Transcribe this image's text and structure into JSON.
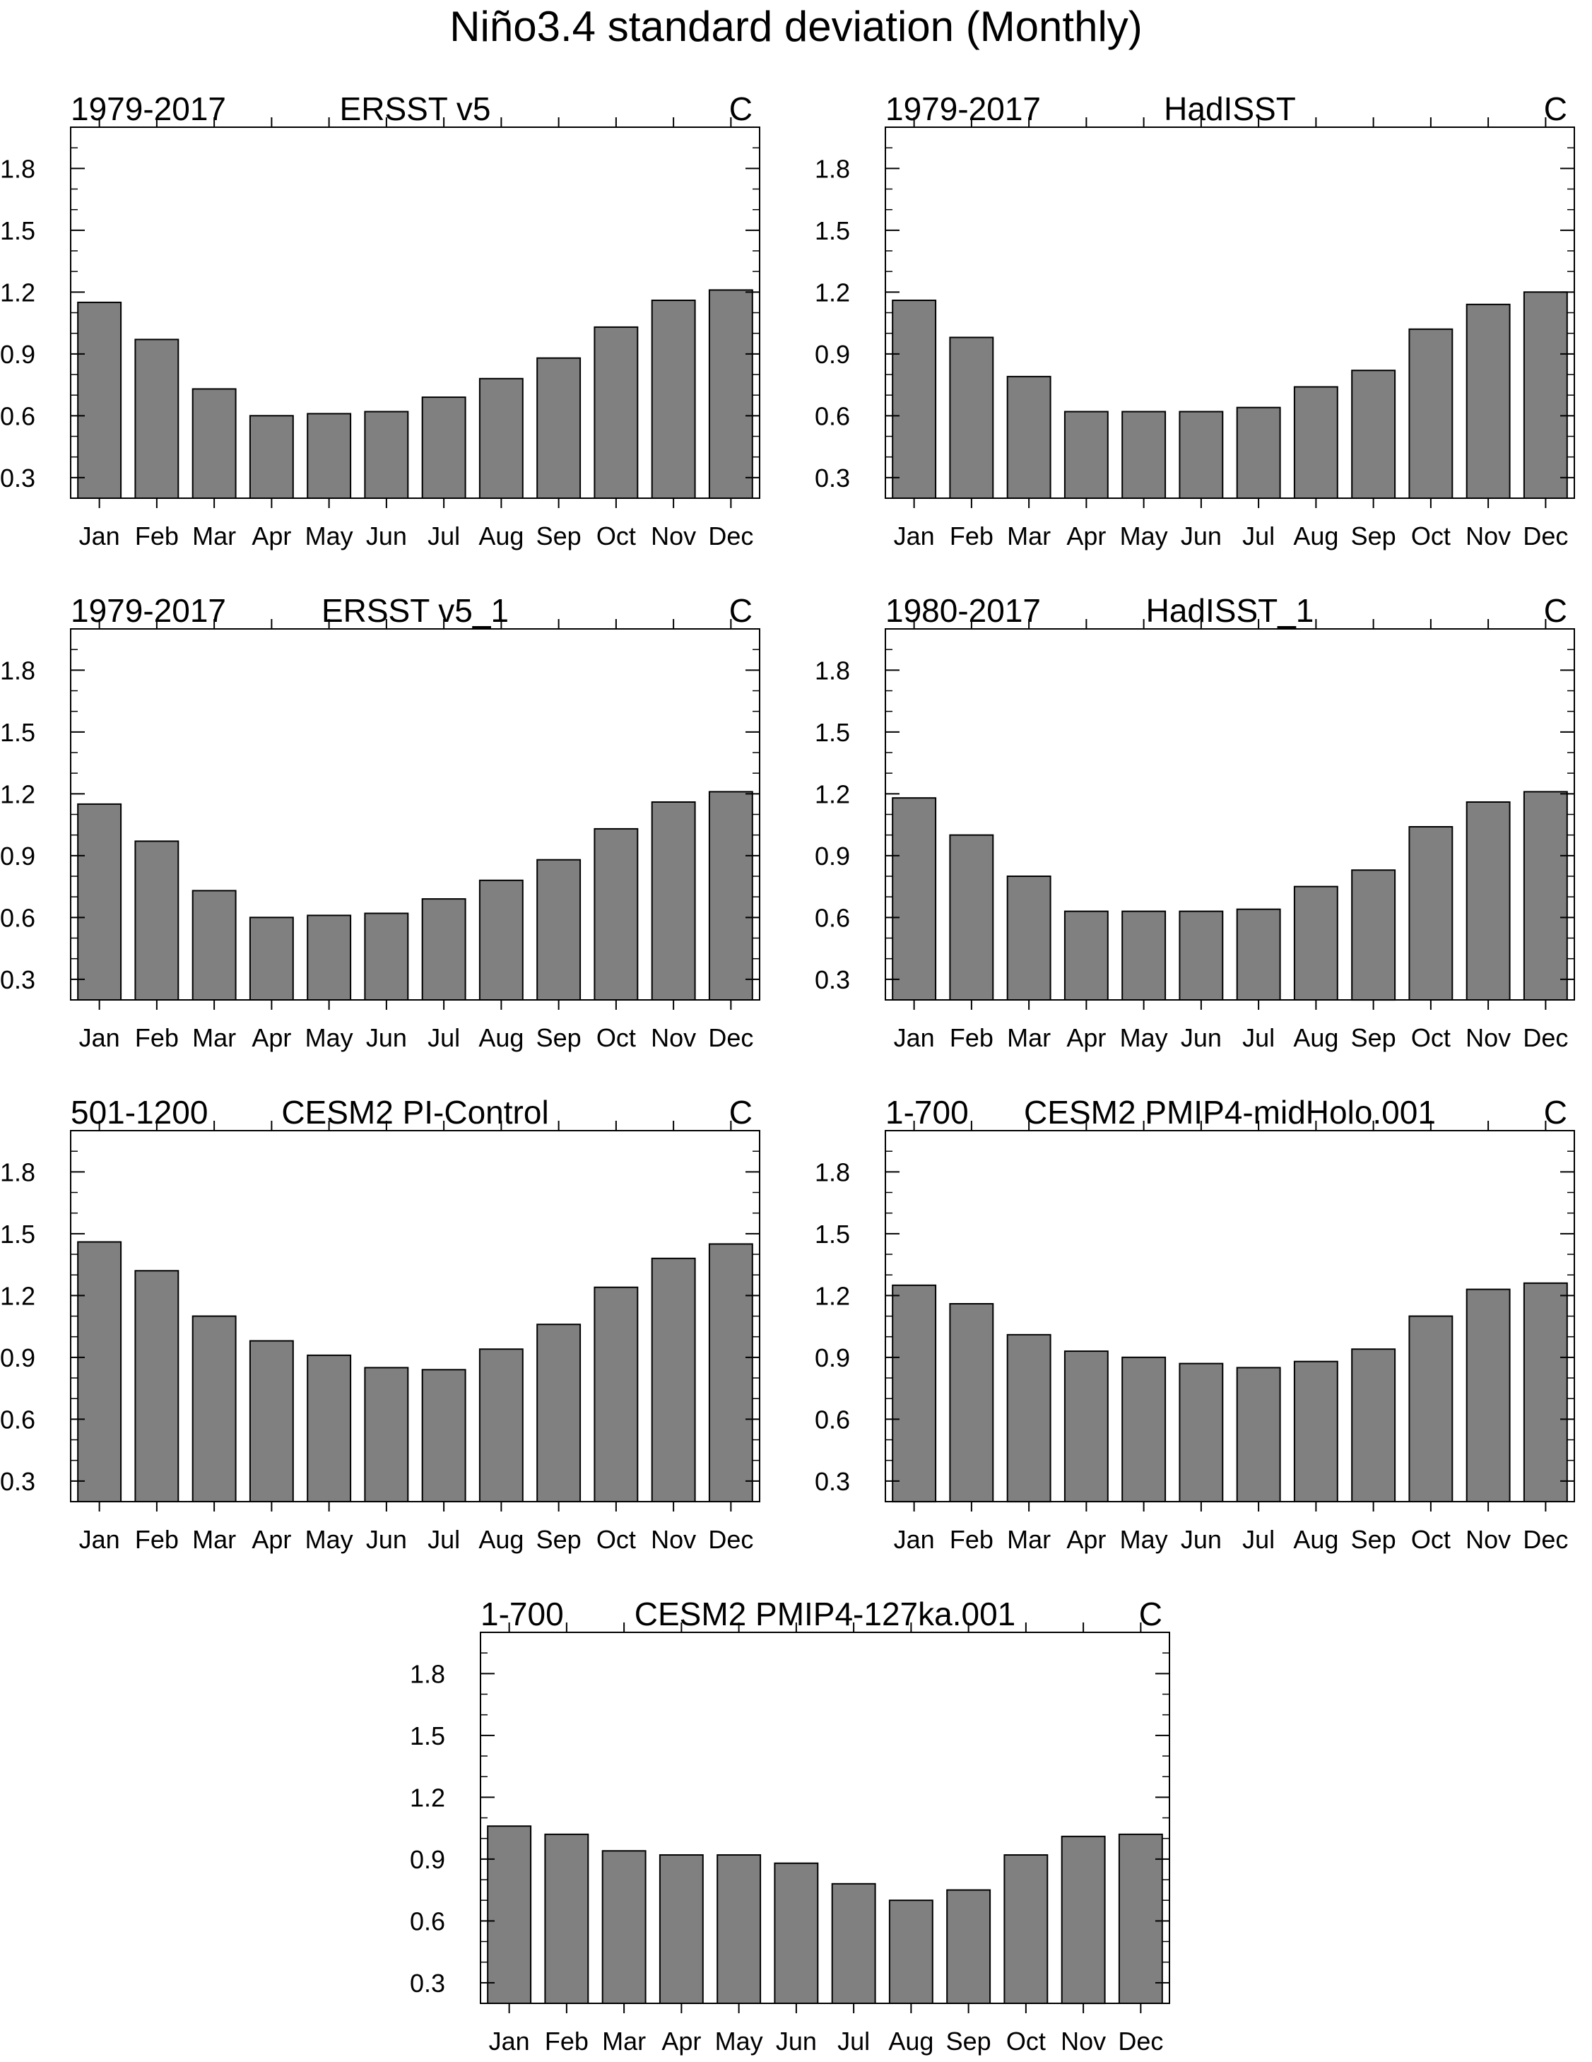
{
  "figure": {
    "title": "Niño3.4 standard deviation (Monthly)"
  },
  "chart_data": [
    {
      "type": "bar",
      "id": "ersst-v5",
      "title": "ERSST v5",
      "period": "1979-2017",
      "units": "C",
      "categories": [
        "Jan",
        "Feb",
        "Mar",
        "Apr",
        "May",
        "Jun",
        "Jul",
        "Aug",
        "Sep",
        "Oct",
        "Nov",
        "Dec"
      ],
      "values": [
        1.15,
        0.97,
        0.73,
        0.6,
        0.61,
        0.62,
        0.69,
        0.78,
        0.88,
        1.03,
        1.16,
        1.21
      ],
      "yticks": [
        "0.3",
        "0.6",
        "0.9",
        "1.2",
        "1.5",
        "1.8"
      ],
      "ylim": [
        0.2,
        2.0
      ],
      "xlabel": "",
      "ylabel": ""
    },
    {
      "type": "bar",
      "id": "hadisst",
      "title": "HadISST",
      "period": "1979-2017",
      "units": "C",
      "categories": [
        "Jan",
        "Feb",
        "Mar",
        "Apr",
        "May",
        "Jun",
        "Jul",
        "Aug",
        "Sep",
        "Oct",
        "Nov",
        "Dec"
      ],
      "values": [
        1.16,
        0.98,
        0.79,
        0.62,
        0.62,
        0.62,
        0.64,
        0.74,
        0.82,
        1.02,
        1.14,
        1.2
      ],
      "yticks": [
        "0.3",
        "0.6",
        "0.9",
        "1.2",
        "1.5",
        "1.8"
      ],
      "ylim": [
        0.2,
        2.0
      ],
      "xlabel": "",
      "ylabel": ""
    },
    {
      "type": "bar",
      "id": "ersst-v5-1",
      "title": "ERSST v5_1",
      "period": "1979-2017",
      "units": "C",
      "categories": [
        "Jan",
        "Feb",
        "Mar",
        "Apr",
        "May",
        "Jun",
        "Jul",
        "Aug",
        "Sep",
        "Oct",
        "Nov",
        "Dec"
      ],
      "values": [
        1.15,
        0.97,
        0.73,
        0.6,
        0.61,
        0.62,
        0.69,
        0.78,
        0.88,
        1.03,
        1.16,
        1.21
      ],
      "yticks": [
        "0.3",
        "0.6",
        "0.9",
        "1.2",
        "1.5",
        "1.8"
      ],
      "ylim": [
        0.2,
        2.0
      ],
      "xlabel": "",
      "ylabel": ""
    },
    {
      "type": "bar",
      "id": "hadisst-1",
      "title": "HadISST_1",
      "period": "1980-2017",
      "units": "C",
      "categories": [
        "Jan",
        "Feb",
        "Mar",
        "Apr",
        "May",
        "Jun",
        "Jul",
        "Aug",
        "Sep",
        "Oct",
        "Nov",
        "Dec"
      ],
      "values": [
        1.18,
        1.0,
        0.8,
        0.63,
        0.63,
        0.63,
        0.64,
        0.75,
        0.83,
        1.04,
        1.16,
        1.21
      ],
      "yticks": [
        "0.3",
        "0.6",
        "0.9",
        "1.2",
        "1.5",
        "1.8"
      ],
      "ylim": [
        0.2,
        2.0
      ],
      "xlabel": "",
      "ylabel": ""
    },
    {
      "type": "bar",
      "id": "cesm2-pi-control",
      "title": "CESM2 PI-Control",
      "period": "501-1200",
      "units": "C",
      "categories": [
        "Jan",
        "Feb",
        "Mar",
        "Apr",
        "May",
        "Jun",
        "Jul",
        "Aug",
        "Sep",
        "Oct",
        "Nov",
        "Dec"
      ],
      "values": [
        1.46,
        1.32,
        1.1,
        0.98,
        0.91,
        0.85,
        0.84,
        0.94,
        1.06,
        1.24,
        1.38,
        1.45
      ],
      "yticks": [
        "0.3",
        "0.6",
        "0.9",
        "1.2",
        "1.5",
        "1.8"
      ],
      "ylim": [
        0.2,
        2.0
      ],
      "xlabel": "",
      "ylabel": ""
    },
    {
      "type": "bar",
      "id": "cesm2-midholo",
      "title": "CESM2 PMIP4-midHolo.001",
      "period": "1-700",
      "units": "C",
      "categories": [
        "Jan",
        "Feb",
        "Mar",
        "Apr",
        "May",
        "Jun",
        "Jul",
        "Aug",
        "Sep",
        "Oct",
        "Nov",
        "Dec"
      ],
      "values": [
        1.25,
        1.16,
        1.01,
        0.93,
        0.9,
        0.87,
        0.85,
        0.88,
        0.94,
        1.1,
        1.23,
        1.26
      ],
      "yticks": [
        "0.3",
        "0.6",
        "0.9",
        "1.2",
        "1.5",
        "1.8"
      ],
      "ylim": [
        0.2,
        2.0
      ],
      "xlabel": "",
      "ylabel": ""
    },
    {
      "type": "bar",
      "id": "cesm2-127ka",
      "title": "CESM2 PMIP4-127ka.001",
      "period": "1-700",
      "units": "C",
      "categories": [
        "Jan",
        "Feb",
        "Mar",
        "Apr",
        "May",
        "Jun",
        "Jul",
        "Aug",
        "Sep",
        "Oct",
        "Nov",
        "Dec"
      ],
      "values": [
        1.06,
        1.02,
        0.94,
        0.92,
        0.92,
        0.88,
        0.78,
        0.7,
        0.75,
        0.92,
        1.01,
        1.02
      ],
      "yticks": [
        "0.3",
        "0.6",
        "0.9",
        "1.2",
        "1.5",
        "1.8"
      ],
      "ylim": [
        0.2,
        2.0
      ],
      "xlabel": "",
      "ylabel": ""
    }
  ]
}
